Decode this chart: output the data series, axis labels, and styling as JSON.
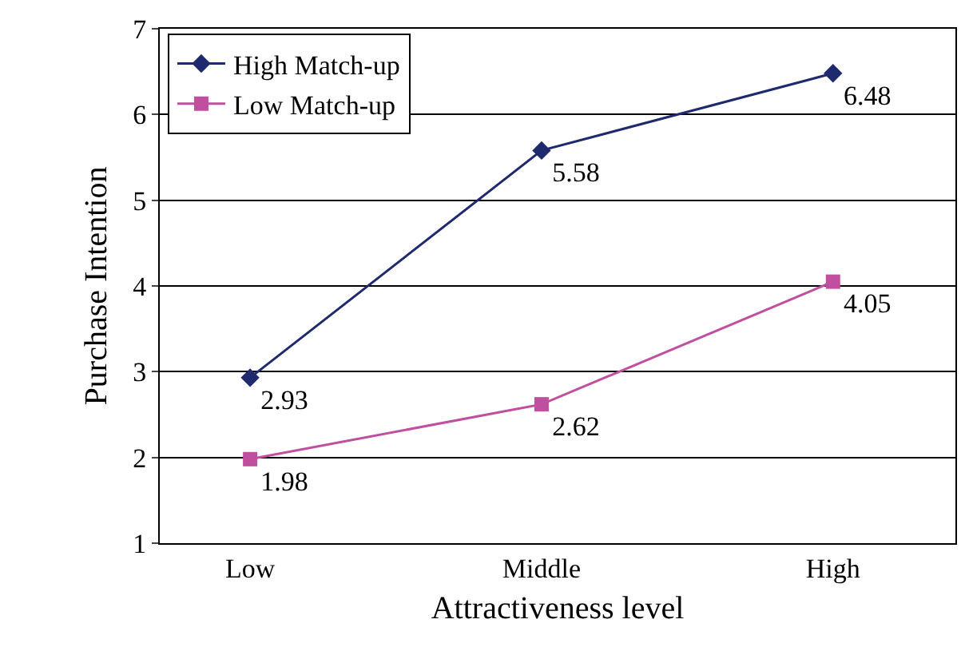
{
  "chart_data": {
    "type": "line",
    "xlabel": "Attractiveness level",
    "ylabel": "Purchase Intention",
    "categories": [
      "Low",
      "Middle",
      "High"
    ],
    "series": [
      {
        "name": "High Match-up",
        "color": "#1f2a6e",
        "marker": "diamond",
        "values": [
          2.93,
          5.58,
          6.48
        ]
      },
      {
        "name": "Low Match-up",
        "color": "#c0509f",
        "marker": "square",
        "values": [
          1.98,
          2.62,
          4.05
        ]
      }
    ],
    "ylim": [
      1,
      7
    ],
    "yticks": [
      1,
      2,
      3,
      4,
      5,
      6,
      7
    ],
    "grid": "y",
    "legend": "top left",
    "data_labels": true,
    "line_style": "solid"
  }
}
